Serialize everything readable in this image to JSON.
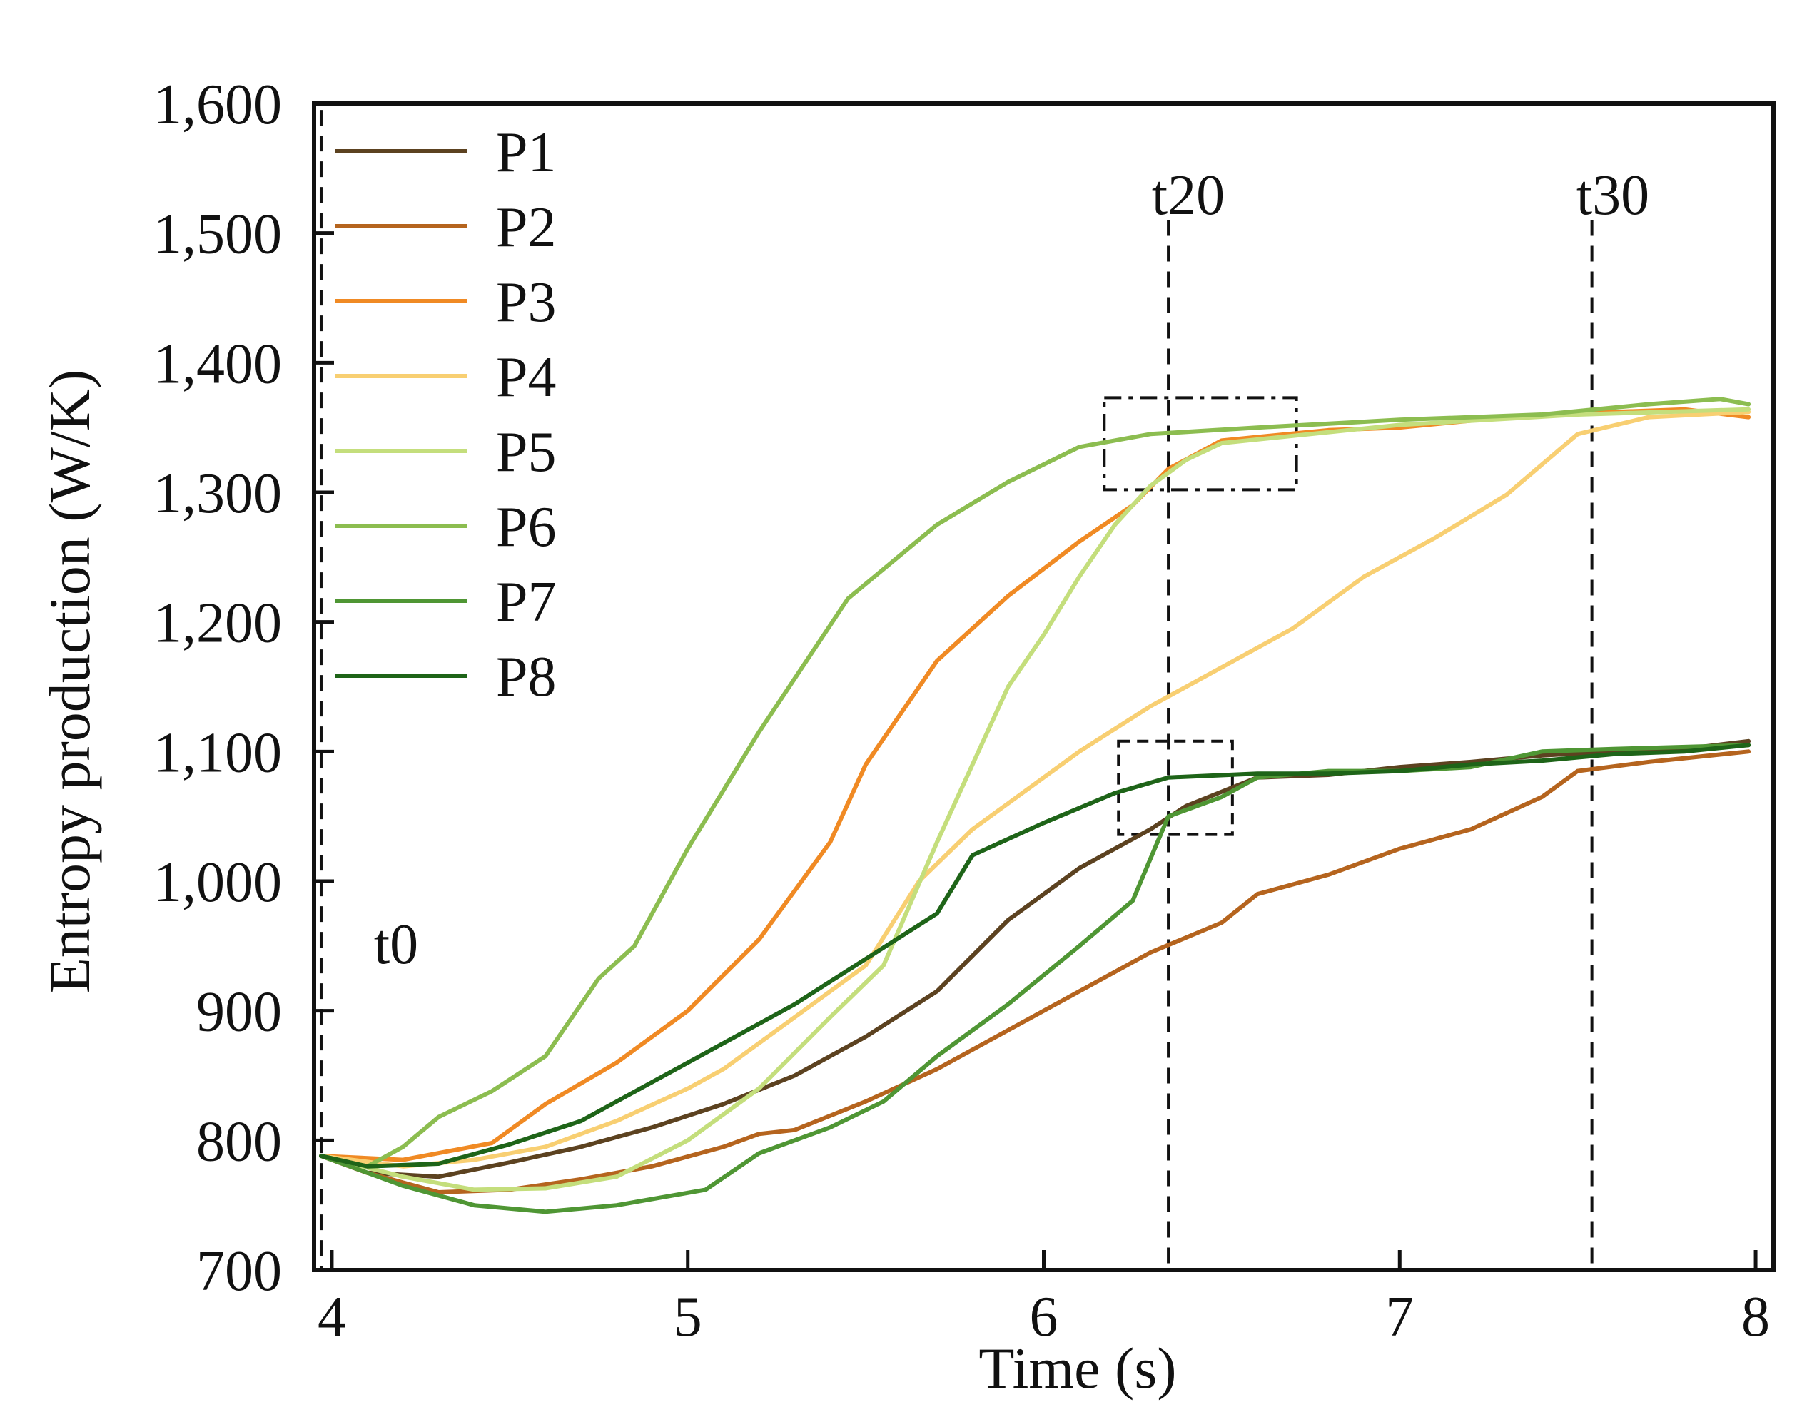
{
  "chart_data": {
    "type": "line",
    "title": "",
    "xlabel": "Time (s)",
    "ylabel": "Entropy production (W/K)",
    "xlim": [
      3.95,
      8.05
    ],
    "ylim": [
      700,
      1600
    ],
    "xticks": [
      {
        "value": 4,
        "label": "4"
      },
      {
        "value": 5,
        "label": "5"
      },
      {
        "value": 6,
        "label": "6"
      },
      {
        "value": 7,
        "label": "7"
      },
      {
        "value": 8,
        "label": "8"
      }
    ],
    "yticks": [
      {
        "value": 700,
        "label": "700"
      },
      {
        "value": 800,
        "label": "800"
      },
      {
        "value": 900,
        "label": "900"
      },
      {
        "value": 1000,
        "label": "1,000"
      },
      {
        "value": 1100,
        "label": "1,100"
      },
      {
        "value": 1200,
        "label": "1,200"
      },
      {
        "value": 1300,
        "label": "1,300"
      },
      {
        "value": 1400,
        "label": "1,400"
      },
      {
        "value": 1500,
        "label": "1,500"
      },
      {
        "value": 1600,
        "label": "1,600"
      }
    ],
    "grid": false,
    "legend_position": "top-left",
    "series": [
      {
        "name": "P1",
        "color": "#5c4220",
        "points": [
          [
            3.97,
            788
          ],
          [
            4.1,
            775
          ],
          [
            4.3,
            772
          ],
          [
            4.5,
            783
          ],
          [
            4.7,
            795
          ],
          [
            4.9,
            810
          ],
          [
            5.1,
            828
          ],
          [
            5.3,
            850
          ],
          [
            5.5,
            880
          ],
          [
            5.7,
            915
          ],
          [
            5.9,
            970
          ],
          [
            6.1,
            1010
          ],
          [
            6.3,
            1040
          ],
          [
            6.4,
            1058
          ],
          [
            6.6,
            1080
          ],
          [
            6.8,
            1082
          ],
          [
            7.0,
            1088
          ],
          [
            7.2,
            1092
          ],
          [
            7.4,
            1097
          ],
          [
            7.6,
            1100
          ],
          [
            7.8,
            1102
          ],
          [
            7.98,
            1108
          ]
        ]
      },
      {
        "name": "P2",
        "color": "#b5641e",
        "points": [
          [
            3.97,
            788
          ],
          [
            4.1,
            775
          ],
          [
            4.3,
            760
          ],
          [
            4.5,
            762
          ],
          [
            4.7,
            770
          ],
          [
            4.9,
            780
          ],
          [
            5.1,
            795
          ],
          [
            5.2,
            805
          ],
          [
            5.3,
            808
          ],
          [
            5.5,
            830
          ],
          [
            5.7,
            855
          ],
          [
            5.9,
            885
          ],
          [
            6.1,
            915
          ],
          [
            6.3,
            945
          ],
          [
            6.5,
            968
          ],
          [
            6.6,
            990
          ],
          [
            6.8,
            1005
          ],
          [
            7.0,
            1025
          ],
          [
            7.2,
            1040
          ],
          [
            7.4,
            1065
          ],
          [
            7.5,
            1085
          ],
          [
            7.7,
            1092
          ],
          [
            7.98,
            1100
          ]
        ]
      },
      {
        "name": "P3",
        "color": "#f08a24",
        "points": [
          [
            3.97,
            788
          ],
          [
            4.2,
            785
          ],
          [
            4.45,
            798
          ],
          [
            4.6,
            828
          ],
          [
            4.8,
            860
          ],
          [
            5.0,
            900
          ],
          [
            5.2,
            955
          ],
          [
            5.4,
            1030
          ],
          [
            5.5,
            1090
          ],
          [
            5.7,
            1170
          ],
          [
            5.9,
            1220
          ],
          [
            6.1,
            1262
          ],
          [
            6.25,
            1290
          ],
          [
            6.35,
            1318
          ],
          [
            6.5,
            1340
          ],
          [
            6.8,
            1348
          ],
          [
            7.0,
            1350
          ],
          [
            7.3,
            1358
          ],
          [
            7.6,
            1362
          ],
          [
            7.8,
            1364
          ],
          [
            7.98,
            1358
          ]
        ]
      },
      {
        "name": "P4",
        "color": "#f8cf72",
        "points": [
          [
            3.97,
            788
          ],
          [
            4.2,
            780
          ],
          [
            4.4,
            785
          ],
          [
            4.6,
            795
          ],
          [
            4.8,
            815
          ],
          [
            5.0,
            840
          ],
          [
            5.1,
            855
          ],
          [
            5.3,
            895
          ],
          [
            5.5,
            935
          ],
          [
            5.65,
            1000
          ],
          [
            5.8,
            1040
          ],
          [
            5.9,
            1060
          ],
          [
            6.1,
            1100
          ],
          [
            6.3,
            1135
          ],
          [
            6.5,
            1165
          ],
          [
            6.7,
            1195
          ],
          [
            6.9,
            1235
          ],
          [
            7.1,
            1265
          ],
          [
            7.3,
            1298
          ],
          [
            7.5,
            1345
          ],
          [
            7.7,
            1358
          ],
          [
            7.98,
            1362
          ]
        ]
      },
      {
        "name": "P5",
        "color": "#c4de7c",
        "points": [
          [
            3.97,
            788
          ],
          [
            4.2,
            772
          ],
          [
            4.4,
            762
          ],
          [
            4.6,
            763
          ],
          [
            4.8,
            772
          ],
          [
            5.0,
            800
          ],
          [
            5.2,
            840
          ],
          [
            5.4,
            895
          ],
          [
            5.55,
            935
          ],
          [
            5.7,
            1030
          ],
          [
            5.8,
            1090
          ],
          [
            5.9,
            1150
          ],
          [
            6.0,
            1190
          ],
          [
            6.1,
            1235
          ],
          [
            6.2,
            1275
          ],
          [
            6.3,
            1305
          ],
          [
            6.4,
            1325
          ],
          [
            6.5,
            1338
          ],
          [
            7.0,
            1352
          ],
          [
            7.5,
            1360
          ],
          [
            7.98,
            1364
          ]
        ]
      },
      {
        "name": "P6",
        "color": "#8cbd50",
        "points": [
          [
            3.97,
            788
          ],
          [
            4.1,
            780
          ],
          [
            4.2,
            795
          ],
          [
            4.3,
            818
          ],
          [
            4.45,
            838
          ],
          [
            4.6,
            865
          ],
          [
            4.75,
            925
          ],
          [
            4.85,
            950
          ],
          [
            5.0,
            1025
          ],
          [
            5.2,
            1115
          ],
          [
            5.45,
            1218
          ],
          [
            5.7,
            1275
          ],
          [
            5.9,
            1308
          ],
          [
            6.1,
            1335
          ],
          [
            6.3,
            1345
          ],
          [
            6.6,
            1350
          ],
          [
            7.0,
            1356
          ],
          [
            7.4,
            1360
          ],
          [
            7.7,
            1368
          ],
          [
            7.9,
            1372
          ],
          [
            7.98,
            1368
          ]
        ]
      },
      {
        "name": "P7",
        "color": "#4f9634",
        "points": [
          [
            3.97,
            788
          ],
          [
            4.2,
            765
          ],
          [
            4.4,
            750
          ],
          [
            4.6,
            745
          ],
          [
            4.8,
            750
          ],
          [
            5.05,
            762
          ],
          [
            5.2,
            790
          ],
          [
            5.4,
            810
          ],
          [
            5.55,
            830
          ],
          [
            5.7,
            865
          ],
          [
            5.9,
            905
          ],
          [
            6.1,
            950
          ],
          [
            6.25,
            985
          ],
          [
            6.35,
            1050
          ],
          [
            6.5,
            1065
          ],
          [
            6.6,
            1080
          ],
          [
            6.8,
            1085
          ],
          [
            7.0,
            1085
          ],
          [
            7.2,
            1088
          ],
          [
            7.4,
            1100
          ],
          [
            7.6,
            1102
          ],
          [
            7.98,
            1105
          ]
        ]
      },
      {
        "name": "P8",
        "color": "#1e6418",
        "points": [
          [
            3.97,
            788
          ],
          [
            4.1,
            780
          ],
          [
            4.3,
            782
          ],
          [
            4.5,
            797
          ],
          [
            4.7,
            815
          ],
          [
            4.9,
            845
          ],
          [
            5.1,
            875
          ],
          [
            5.3,
            905
          ],
          [
            5.5,
            940
          ],
          [
            5.7,
            975
          ],
          [
            5.8,
            1020
          ],
          [
            6.0,
            1045
          ],
          [
            6.2,
            1068
          ],
          [
            6.35,
            1080
          ],
          [
            6.6,
            1083
          ],
          [
            6.8,
            1083
          ],
          [
            7.0,
            1085
          ],
          [
            7.2,
            1090
          ],
          [
            7.4,
            1093
          ],
          [
            7.6,
            1098
          ],
          [
            7.8,
            1100
          ],
          [
            7.98,
            1105
          ]
        ]
      }
    ],
    "vertical_markers": [
      {
        "x": 3.97,
        "label": "t0"
      },
      {
        "x": 6.35,
        "label": "t20"
      },
      {
        "x": 7.54,
        "label": "t30"
      }
    ],
    "annotation_boxes": [
      {
        "x_range": [
          6.17,
          6.71
        ],
        "y_range": [
          1302,
          1373
        ]
      },
      {
        "x_range": [
          6.21,
          6.53
        ],
        "y_range": [
          1036,
          1108
        ]
      }
    ]
  }
}
